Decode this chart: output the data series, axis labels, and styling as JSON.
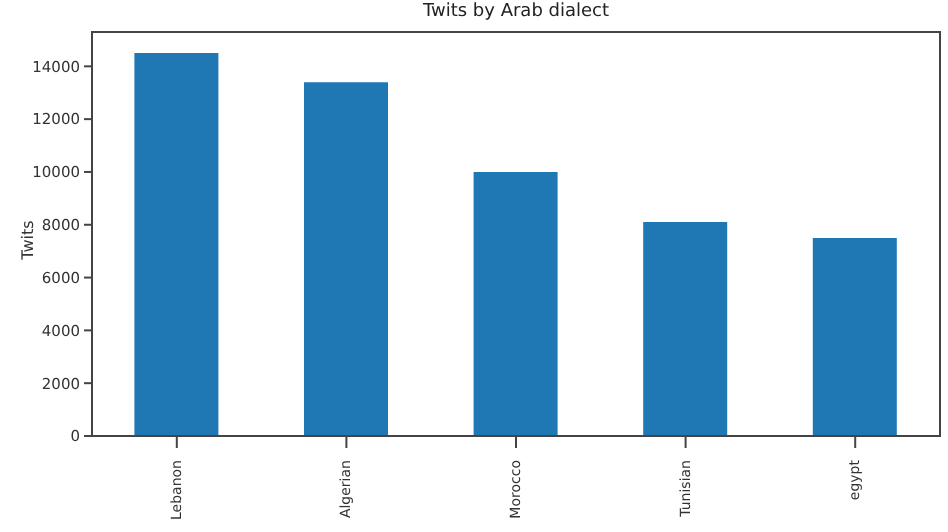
{
  "chart_data": {
    "type": "bar",
    "title": "Twits by Arab dialect",
    "ylabel": "Twits",
    "categories": [
      "Lebanon",
      "Algerian",
      "Morocco",
      "Tunisian",
      "egypt"
    ],
    "values": [
      14500,
      13400,
      10000,
      8100,
      7500
    ],
    "color": "#1f77b4",
    "ylim": [
      0,
      15300
    ],
    "yticks": [
      0,
      2000,
      4000,
      6000,
      8000,
      10000,
      12000,
      14000
    ],
    "grid": false
  }
}
